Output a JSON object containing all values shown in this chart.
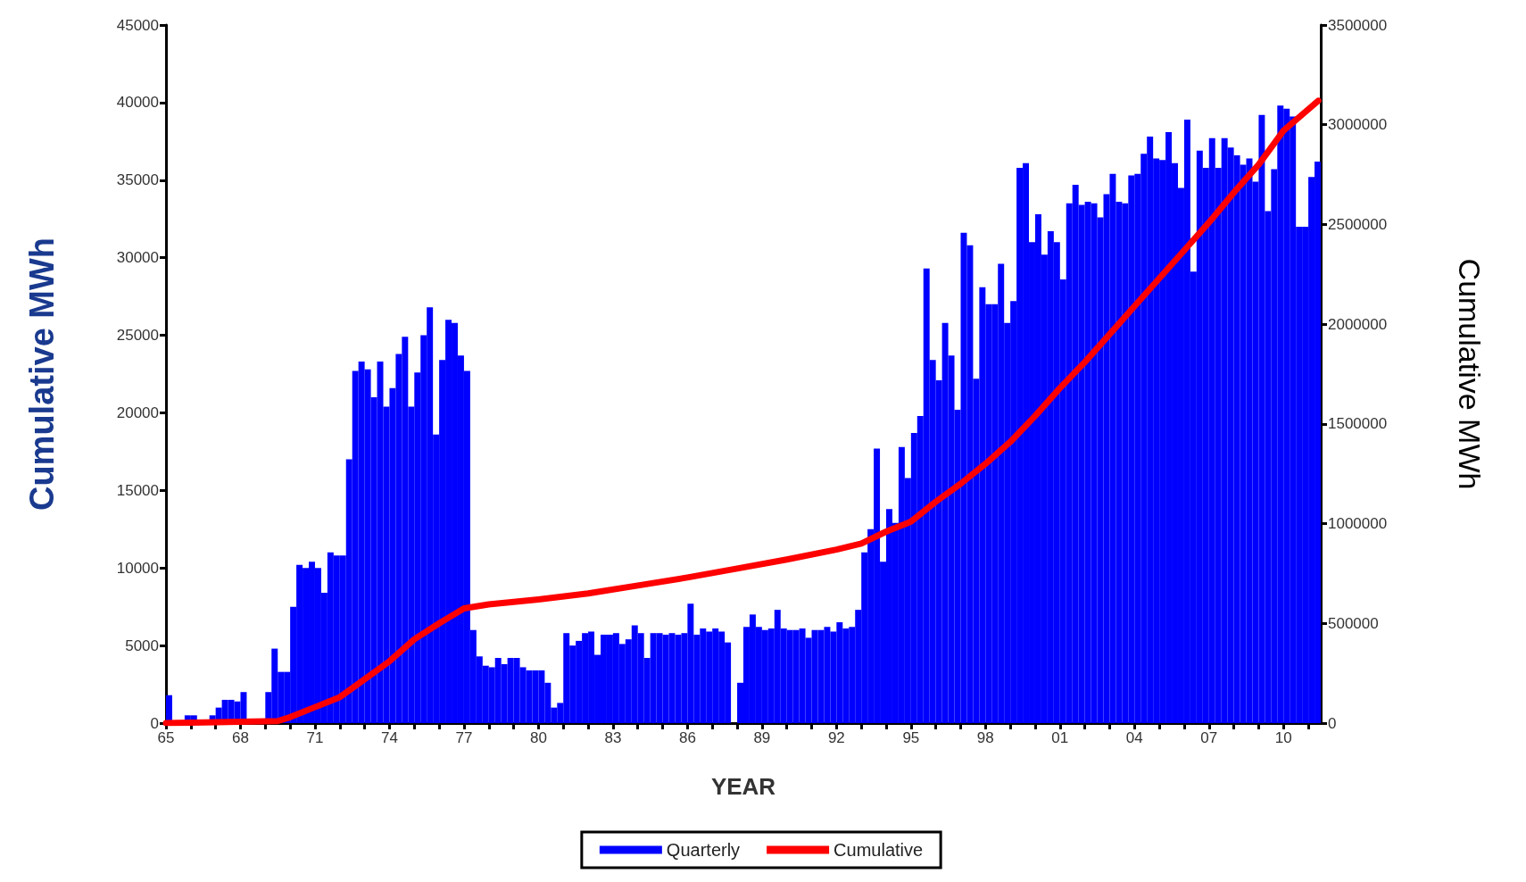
{
  "chart_data": {
    "type": "bar",
    "xlabel": "YEAR",
    "ylabel": "Cumulative MWh",
    "y2label": "Cumulative MWh",
    "xlim": [
      1965,
      2011.5
    ],
    "xticks": [
      {
        "value": 1965,
        "label": "65"
      },
      {
        "value": 1966,
        "label": null
      },
      {
        "value": 1967,
        "label": null
      },
      {
        "value": 1968,
        "label": "68"
      },
      {
        "value": 1969,
        "label": null
      },
      {
        "value": 1970,
        "label": null
      },
      {
        "value": 1971,
        "label": "71"
      },
      {
        "value": 1972,
        "label": null
      },
      {
        "value": 1973,
        "label": null
      },
      {
        "value": 1974,
        "label": "74"
      },
      {
        "value": 1975,
        "label": null
      },
      {
        "value": 1976,
        "label": null
      },
      {
        "value": 1977,
        "label": "77"
      },
      {
        "value": 1978,
        "label": null
      },
      {
        "value": 1979,
        "label": null
      },
      {
        "value": 1980,
        "label": "80"
      },
      {
        "value": 1981,
        "label": null
      },
      {
        "value": 1982,
        "label": null
      },
      {
        "value": 1983,
        "label": "83"
      },
      {
        "value": 1984,
        "label": null
      },
      {
        "value": 1985,
        "label": null
      },
      {
        "value": 1986,
        "label": "86"
      },
      {
        "value": 1987,
        "label": null
      },
      {
        "value": 1988,
        "label": null
      },
      {
        "value": 1989,
        "label": "89"
      },
      {
        "value": 1990,
        "label": null
      },
      {
        "value": 1991,
        "label": null
      },
      {
        "value": 1992,
        "label": "92"
      },
      {
        "value": 1993,
        "label": null
      },
      {
        "value": 1994,
        "label": null
      },
      {
        "value": 1995,
        "label": "95"
      },
      {
        "value": 1996,
        "label": null
      },
      {
        "value": 1997,
        "label": null
      },
      {
        "value": 1998,
        "label": "98"
      },
      {
        "value": 1999,
        "label": null
      },
      {
        "value": 2000,
        "label": null
      },
      {
        "value": 2001,
        "label": "01"
      },
      {
        "value": 2002,
        "label": null
      },
      {
        "value": 2003,
        "label": null
      },
      {
        "value": 2004,
        "label": "04"
      },
      {
        "value": 2005,
        "label": null
      },
      {
        "value": 2006,
        "label": null
      },
      {
        "value": 2007,
        "label": "07"
      },
      {
        "value": 2008,
        "label": null
      },
      {
        "value": 2009,
        "label": null
      },
      {
        "value": 2010,
        "label": "10"
      },
      {
        "value": 2011,
        "label": null
      }
    ],
    "ylim": [
      0,
      45000
    ],
    "yticks": [
      0,
      5000,
      10000,
      15000,
      20000,
      25000,
      30000,
      35000,
      40000,
      45000
    ],
    "y2lim": [
      0,
      3500000
    ],
    "y2ticks": [
      0,
      500000,
      1000000,
      1500000,
      2000000,
      2500000,
      3000000,
      3500000
    ],
    "grid": false,
    "legend": "bottom",
    "series": [
      {
        "name": "Quarterly",
        "color": "#0000ff",
        "x": [
          1965,
          1965.25,
          1965.5,
          1965.75,
          1966,
          1966.25,
          1966.5,
          1966.75,
          1967,
          1967.25,
          1967.5,
          1967.75,
          1968,
          1968.25,
          1968.5,
          1968.75,
          1969,
          1969.25,
          1969.5,
          1969.75,
          1970,
          1970.25,
          1970.5,
          1970.75,
          1971,
          1971.25,
          1971.5,
          1971.75,
          1972,
          1972.25,
          1972.5,
          1972.75,
          1973,
          1973.25,
          1973.5,
          1973.75,
          1974,
          1974.25,
          1974.5,
          1974.75,
          1975,
          1975.25,
          1975.5,
          1975.75,
          1976,
          1976.25,
          1976.5,
          1976.75,
          1977,
          1977.25,
          1977.5,
          1977.75,
          1978,
          1978.25,
          1978.5,
          1978.75,
          1979,
          1979.25,
          1979.5,
          1979.75,
          1980,
          1980.25,
          1980.5,
          1980.75,
          1981,
          1981.25,
          1981.5,
          1981.75,
          1982,
          1982.25,
          1982.5,
          1982.75,
          1983,
          1983.25,
          1983.5,
          1983.75,
          1984,
          1984.25,
          1984.5,
          1984.75,
          1985,
          1985.25,
          1985.5,
          1985.75,
          1986,
          1986.25,
          1986.5,
          1986.75,
          1987,
          1987.25,
          1987.5,
          1987.75,
          1988,
          1988.25,
          1988.5,
          1988.75,
          1989,
          1989.25,
          1989.5,
          1989.75,
          1990,
          1990.25,
          1990.5,
          1990.75,
          1991,
          1991.25,
          1991.5,
          1991.75,
          1992,
          1992.25,
          1992.5,
          1992.75,
          1993,
          1993.25,
          1993.5,
          1993.75,
          1994,
          1994.25,
          1994.5,
          1994.75,
          1995,
          1995.25,
          1995.5,
          1995.75,
          1996,
          1996.25,
          1996.5,
          1996.75,
          1997,
          1997.25,
          1997.5,
          1997.75,
          1998,
          1998.25,
          1998.5,
          1998.75,
          1999,
          1999.25,
          1999.5,
          1999.75,
          2000,
          2000.25,
          2000.5,
          2000.75,
          2001,
          2001.25,
          2001.5,
          2001.75,
          2002,
          2002.25,
          2002.5,
          2002.75,
          2003,
          2003.25,
          2003.5,
          2003.75,
          2004,
          2004.25,
          2004.5,
          2004.75,
          2005,
          2005.25,
          2005.5,
          2005.75,
          2006,
          2006.25,
          2006.5,
          2006.75,
          2007,
          2007.25,
          2007.5,
          2007.75,
          2008,
          2008.25,
          2008.5,
          2008.75,
          2009,
          2009.25,
          2009.5,
          2009.75,
          2010,
          2010.25,
          2010.5,
          2010.75,
          2011,
          2011.25
        ],
        "values": [
          1800,
          0,
          0,
          500,
          500,
          null,
          null,
          500,
          1000,
          1500,
          1500,
          1400,
          2000,
          0,
          0,
          0,
          2000,
          4800,
          3300,
          3300,
          7500,
          10200,
          10000,
          10400,
          10000,
          8400,
          11000,
          10800,
          10800,
          17000,
          22700,
          23300,
          22800,
          21000,
          23300,
          20400,
          21600,
          23800,
          24900,
          20400,
          22600,
          25000,
          26800,
          18600,
          23400,
          26000,
          25800,
          23700,
          22700,
          6000,
          4300,
          3700,
          3600,
          4200,
          3800,
          4200,
          4200,
          3600,
          3400,
          3400,
          3400,
          2600,
          1000,
          1300,
          5800,
          5000,
          5300,
          5800,
          5900,
          4400,
          5700,
          5700,
          5800,
          5100,
          5400,
          6300,
          5800,
          4200,
          5800,
          5800,
          5700,
          5800,
          5700,
          5800,
          7700,
          5700,
          6100,
          5900,
          6100,
          5900,
          5200,
          0,
          2600,
          6200,
          7000,
          6200,
          6000,
          6100,
          7300,
          6100,
          6000,
          6000,
          6100,
          5500,
          6000,
          6000,
          6200,
          5900,
          6500,
          6100,
          6200,
          7300,
          11000,
          12500,
          17700,
          10400,
          13800,
          12900,
          17800,
          15800,
          18700,
          19800,
          29300,
          23400,
          22100,
          25800,
          23700,
          20200,
          31600,
          30800,
          22200,
          28100,
          27000,
          27000,
          29600,
          25800,
          27200,
          35800,
          36100,
          31000,
          32800,
          30200,
          31700,
          31000,
          28600,
          33500,
          34700,
          33400,
          33600,
          33500,
          32600,
          34100,
          35400,
          33600,
          33500,
          35300,
          35400,
          36700,
          37800,
          36400,
          36300,
          38100,
          36100,
          34500,
          38900,
          29100,
          36900,
          35800,
          37700,
          35800,
          37700,
          37100,
          36600,
          36000,
          36400,
          34900,
          39200,
          33000,
          35700,
          39800,
          39600,
          39100,
          32000,
          32000,
          35200,
          36200
        ]
      },
      {
        "name": "Cumulative",
        "type": "line",
        "axis": "y2",
        "color": "#ff0000",
        "x": [
          1965,
          1969.5,
          1970,
          1971,
          1972,
          1973,
          1974,
          1975,
          1976,
          1977,
          1978,
          1980,
          1982,
          1984,
          1986,
          1988,
          1990,
          1992,
          1993,
          1994,
          1995,
          1996,
          1997,
          1998,
          1999,
          2000,
          2001,
          2002,
          2003,
          2004,
          2005,
          2006,
          2007,
          2008,
          2009,
          2010,
          2011.4
        ],
        "values": [
          0,
          10000,
          30000,
          80000,
          130000,
          220000,
          310000,
          420000,
          500000,
          575000,
          595000,
          620000,
          650000,
          690000,
          730000,
          775000,
          820000,
          870000,
          900000,
          960000,
          1010000,
          1110000,
          1200000,
          1300000,
          1410000,
          1540000,
          1680000,
          1810000,
          1950000,
          2090000,
          2230000,
          2370000,
          2510000,
          2660000,
          2800000,
          2970000,
          3120000
        ]
      }
    ]
  }
}
